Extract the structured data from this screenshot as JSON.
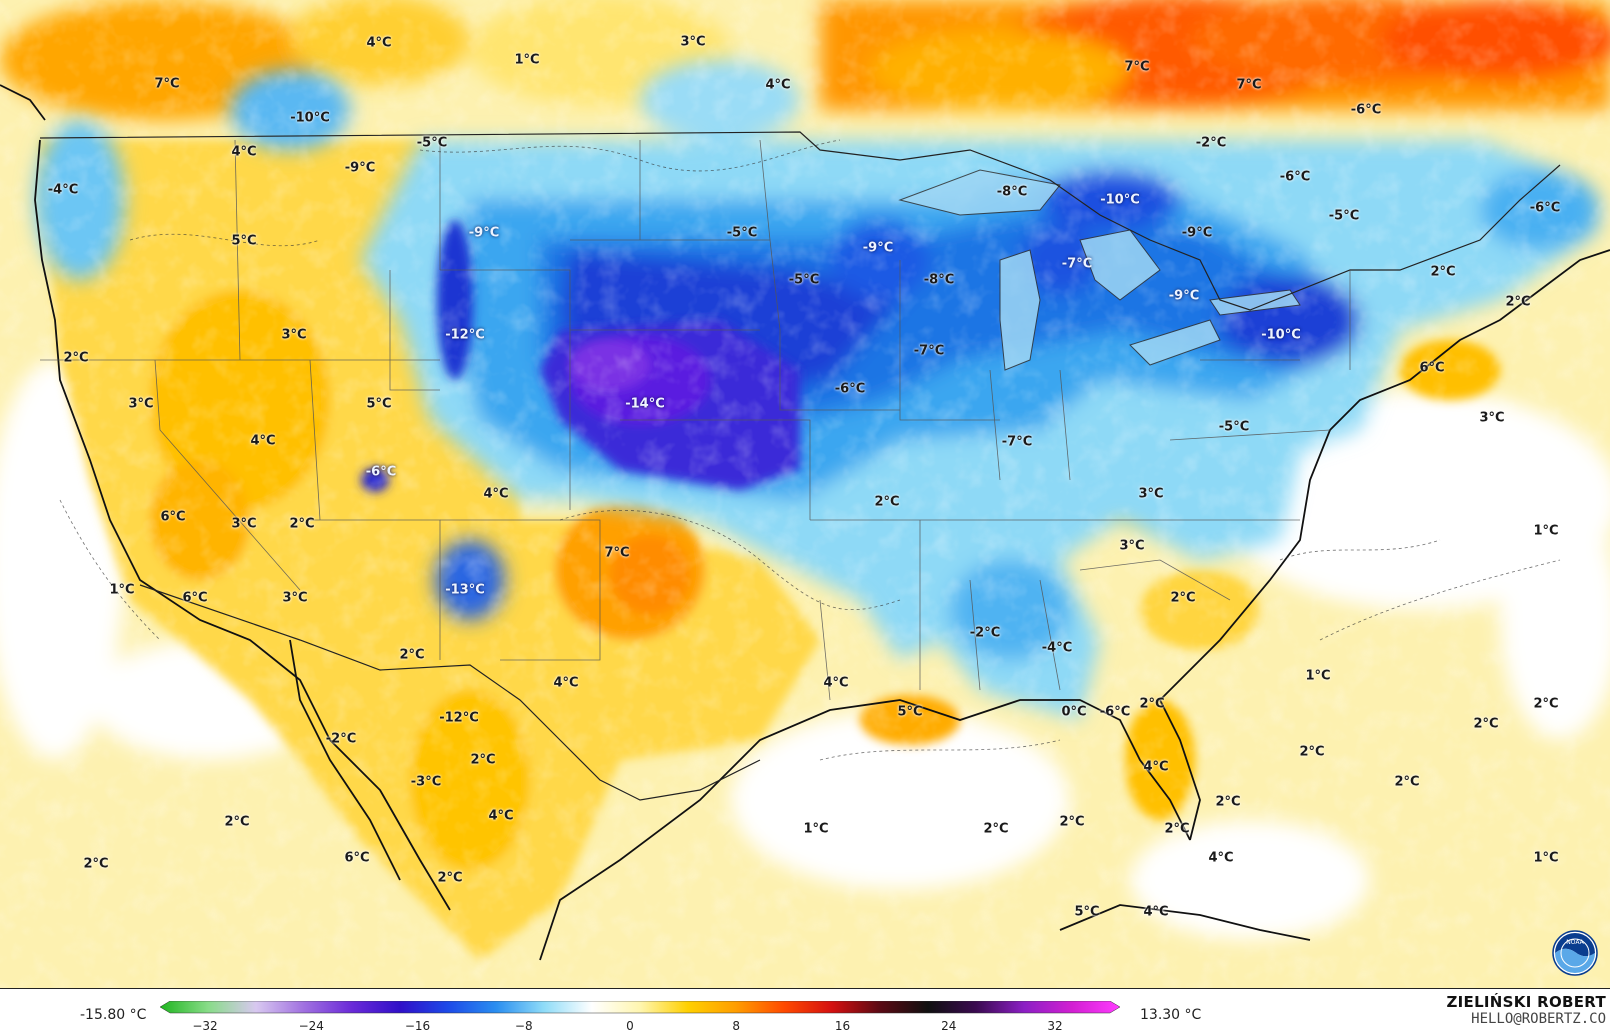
{
  "colorbar": {
    "min_label": "-15.80 °C",
    "max_label": "13.30 °C",
    "ticks": [
      "−32",
      "−24",
      "−16",
      "−8",
      "0",
      "8",
      "16",
      "24",
      "32"
    ],
    "stops": [
      "#1fb51f",
      "#88dc88",
      "#d8c8f0",
      "#a070e0",
      "#6a2ad8",
      "#3010c8",
      "#1d4ae8",
      "#2a8ef0",
      "#8fdcf8",
      "#ffffff",
      "#fff6b0",
      "#ffd000",
      "#ff9d00",
      "#ff4a00",
      "#d41010",
      "#5a0a14",
      "#101010",
      "#3a0a50",
      "#8b1fc4",
      "#d21fd2",
      "#ff3cff"
    ]
  },
  "credit": {
    "name": "ZIELIŃSKI ROBERT",
    "email": "HELLO@ROBERTZ.CO"
  },
  "logo": {
    "icon": "noaa-logo",
    "text": "NOAA"
  },
  "labels": [
    {
      "text": "4°C",
      "cold": false
    },
    {
      "text": "1°C",
      "cold": false
    },
    {
      "text": "3°C",
      "cold": false
    },
    {
      "text": "7°C",
      "cold": false
    },
    {
      "text": "4°C",
      "cold": false
    },
    {
      "text": "7°C",
      "cold": false
    },
    {
      "text": "7°C",
      "cold": false
    },
    {
      "text": "-6°C",
      "cold": false
    },
    {
      "text": "-10°C",
      "cold": false
    },
    {
      "text": "-5°C",
      "cold": false
    },
    {
      "text": "-2°C",
      "cold": false
    },
    {
      "text": "4°C",
      "cold": false
    },
    {
      "text": "-4°C",
      "cold": false
    },
    {
      "text": "-9°C",
      "cold": false
    },
    {
      "text": "-8°C",
      "cold": false
    },
    {
      "text": "-10°C",
      "cold": true
    },
    {
      "text": "-6°C",
      "cold": false
    },
    {
      "text": "-5°C",
      "cold": false
    },
    {
      "text": "-6°C",
      "cold": false
    },
    {
      "text": "-9°C",
      "cold": true
    },
    {
      "text": "-5°C",
      "cold": false
    },
    {
      "text": "5°C",
      "cold": false
    },
    {
      "text": "-9°C",
      "cold": true
    },
    {
      "text": "-9°C",
      "cold": false
    },
    {
      "text": "-5°C",
      "cold": false
    },
    {
      "text": "-8°C",
      "cold": false
    },
    {
      "text": "-7°C",
      "cold": true
    },
    {
      "text": "-9°C",
      "cold": true
    },
    {
      "text": "2°C",
      "cold": false
    },
    {
      "text": "2°C",
      "cold": false
    },
    {
      "text": "3°C",
      "cold": false
    },
    {
      "text": "-12°C",
      "cold": true
    },
    {
      "text": "-10°C",
      "cold": true
    },
    {
      "text": "2°C",
      "cold": false
    },
    {
      "text": "-7°C",
      "cold": false
    },
    {
      "text": "6°C",
      "cold": false
    },
    {
      "text": "3°C",
      "cold": false
    },
    {
      "text": "5°C",
      "cold": false
    },
    {
      "text": "-14°C",
      "cold": true
    },
    {
      "text": "-6°C",
      "cold": false
    },
    {
      "text": "3°C",
      "cold": false
    },
    {
      "text": "4°C",
      "cold": false
    },
    {
      "text": "-7°C",
      "cold": false
    },
    {
      "text": "-5°C",
      "cold": false
    },
    {
      "text": "-6°C",
      "cold": true
    },
    {
      "text": "4°C",
      "cold": false
    },
    {
      "text": "2°C",
      "cold": false
    },
    {
      "text": "3°C",
      "cold": false
    },
    {
      "text": "6°C",
      "cold": false
    },
    {
      "text": "3°C",
      "cold": false
    },
    {
      "text": "2°C",
      "cold": false
    },
    {
      "text": "1°C",
      "cold": false
    },
    {
      "text": "7°C",
      "cold": false
    },
    {
      "text": "3°C",
      "cold": false
    },
    {
      "text": "1°C",
      "cold": false
    },
    {
      "text": "6°C",
      "cold": false
    },
    {
      "text": "3°C",
      "cold": false
    },
    {
      "text": "-13°C",
      "cold": true
    },
    {
      "text": "2°C",
      "cold": false
    },
    {
      "text": "2°C",
      "cold": false
    },
    {
      "text": "-2°C",
      "cold": false
    },
    {
      "text": "-4°C",
      "cold": false
    },
    {
      "text": "4°C",
      "cold": false
    },
    {
      "text": "4°C",
      "cold": false
    },
    {
      "text": "1°C",
      "cold": false
    },
    {
      "text": "5°C",
      "cold": false
    },
    {
      "text": "-12°C",
      "cold": false
    },
    {
      "text": "0°C",
      "cold": false
    },
    {
      "text": "-6°C",
      "cold": false
    },
    {
      "text": "2°C",
      "cold": false
    },
    {
      "text": "2°C",
      "cold": false
    },
    {
      "text": "2°C",
      "cold": false
    },
    {
      "text": "2°C",
      "cold": false
    },
    {
      "text": "-2°C",
      "cold": false
    },
    {
      "text": "4°C",
      "cold": false
    },
    {
      "text": "-3°C",
      "cold": false
    },
    {
      "text": "2°C",
      "cold": false
    },
    {
      "text": "2°C",
      "cold": false
    },
    {
      "text": "4°C",
      "cold": false
    },
    {
      "text": "1°C",
      "cold": false
    },
    {
      "text": "2°C",
      "cold": false
    },
    {
      "text": "2°C",
      "cold": false
    },
    {
      "text": "2°C",
      "cold": false
    },
    {
      "text": "2°C",
      "cold": false
    },
    {
      "text": "2°C",
      "cold": false
    },
    {
      "text": "4°C",
      "cold": false
    },
    {
      "text": "1°C",
      "cold": false
    },
    {
      "text": "6°C",
      "cold": false
    },
    {
      "text": "2°C",
      "cold": false
    },
    {
      "text": "2°C",
      "cold": false
    },
    {
      "text": "5°C",
      "cold": false
    },
    {
      "text": "4°C",
      "cold": false
    }
  ]
}
